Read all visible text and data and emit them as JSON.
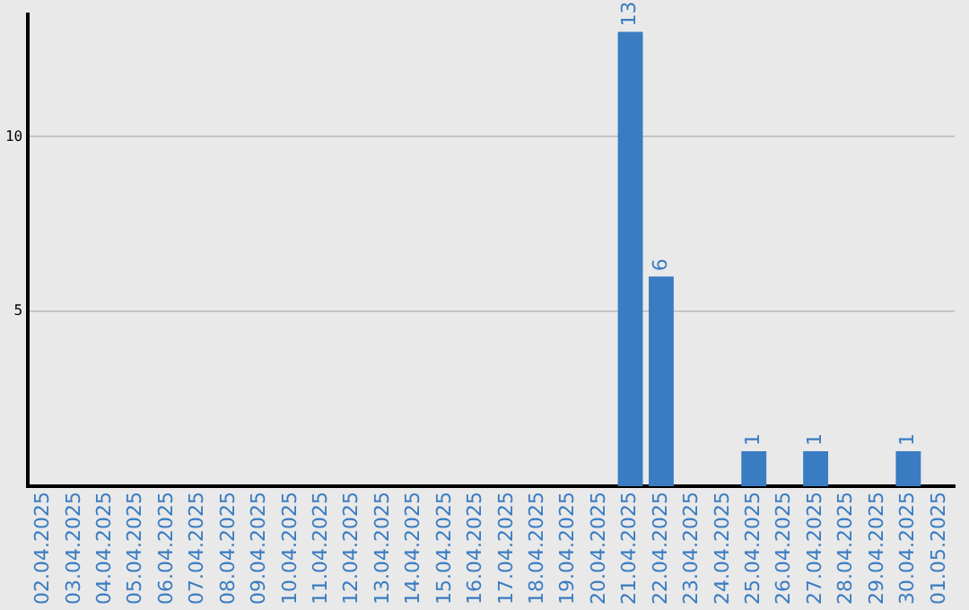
{
  "chart_data": {
    "type": "bar",
    "categories": [
      "02.04.2025",
      "03.04.2025",
      "04.04.2025",
      "05.04.2025",
      "06.04.2025",
      "07.04.2025",
      "08.04.2025",
      "09.04.2025",
      "10.04.2025",
      "11.04.2025",
      "12.04.2025",
      "13.04.2025",
      "14.04.2025",
      "15.04.2025",
      "16.04.2025",
      "17.04.2025",
      "18.04.2025",
      "19.04.2025",
      "20.04.2025",
      "21.04.2025",
      "22.04.2025",
      "23.04.2025",
      "24.04.2025",
      "25.04.2025",
      "26.04.2025",
      "27.04.2025",
      "28.04.2025",
      "29.04.2025",
      "30.04.2025",
      "01.05.2025"
    ],
    "values": [
      0,
      0,
      0,
      0,
      0,
      0,
      0,
      0,
      0,
      0,
      0,
      0,
      0,
      0,
      0,
      0,
      0,
      0,
      0,
      13,
      6,
      0,
      0,
      1,
      0,
      1,
      0,
      0,
      1,
      0
    ],
    "value_labels": [
      null,
      null,
      null,
      null,
      null,
      null,
      null,
      null,
      null,
      null,
      null,
      null,
      null,
      null,
      null,
      null,
      null,
      null,
      null,
      "13",
      "6",
      null,
      null,
      "1",
      null,
      "1",
      null,
      null,
      "1",
      null
    ],
    "color": "#3a7cc2",
    "ylim": [
      0,
      13.5
    ],
    "yticks": [
      5,
      10
    ],
    "grid": "y",
    "legend": false
  }
}
